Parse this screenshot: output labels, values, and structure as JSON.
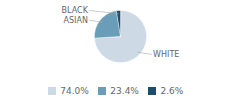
{
  "chart_data": {
    "type": "pie",
    "categories": [
      "WHITE",
      "ASIAN",
      "BLACK"
    ],
    "values": [
      74.0,
      23.4,
      2.6
    ],
    "value_labels": [
      "74.0%",
      "23.4%",
      "2.6%"
    ],
    "colors": [
      "#cdd9e5",
      "#6a9db8",
      "#1e4d6b"
    ],
    "legend": "bottom"
  }
}
